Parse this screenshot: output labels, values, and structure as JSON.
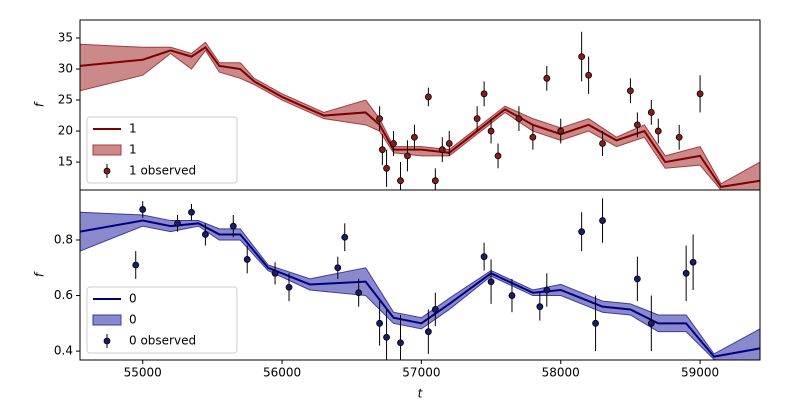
{
  "chart_data": [
    {
      "type": "line",
      "ylabel": "f",
      "legend": "lower left",
      "xlim": [
        54550,
        59430
      ],
      "ylim": [
        10.5,
        37.9
      ],
      "yticks": [
        15,
        20,
        25,
        30,
        35
      ],
      "x": [
        54550,
        55000,
        55200,
        55350,
        55450,
        55550,
        55700,
        55800,
        56000,
        56300,
        56600,
        56700,
        56800,
        57000,
        57200,
        57400,
        57600,
        57800,
        58000,
        58200,
        58400,
        58600,
        58750,
        59000,
        59150,
        59430
      ],
      "series": [
        {
          "name": "1",
          "color": "#800000",
          "values": [
            30.5,
            31.5,
            33,
            32,
            33.5,
            30.5,
            30,
            28,
            25.5,
            22.5,
            23,
            21,
            17,
            17,
            16.5,
            20,
            23.5,
            21,
            19.5,
            21,
            18.5,
            20,
            15,
            16,
            11,
            12
          ]
        }
      ],
      "band": {
        "name": "1",
        "color": "#a83a3a",
        "lower": [
          26.5,
          29,
          32.5,
          30,
          33,
          29.5,
          28.5,
          27.5,
          25,
          22,
          21,
          20,
          16.5,
          16,
          16,
          19.5,
          23,
          20,
          18.5,
          20,
          17.5,
          19,
          14,
          14.5,
          10.5,
          9
        ],
        "upper": [
          34,
          33.5,
          33.5,
          32.5,
          34.3,
          31,
          31,
          28.5,
          26,
          23,
          25,
          22,
          17.5,
          17.5,
          17,
          20.5,
          24,
          22,
          20.5,
          22,
          19,
          21,
          16,
          17.5,
          11.5,
          15
        ]
      },
      "observed": {
        "name": "1 observed",
        "color": "#8b1a1a",
        "x": [
          56700,
          56720,
          56750,
          56800,
          56850,
          56900,
          56950,
          57050,
          57100,
          57150,
          57200,
          57400,
          57450,
          57500,
          57550,
          57700,
          57800,
          57900,
          58000,
          58150,
          58200,
          58300,
          58500,
          58550,
          58650,
          58700,
          58850,
          59000
        ],
        "values": [
          22,
          17,
          14,
          18,
          12,
          16,
          19,
          25.5,
          12,
          17,
          18,
          22,
          26,
          20,
          16,
          22,
          19,
          28.5,
          20,
          32,
          29,
          18,
          26.5,
          21,
          23,
          20,
          19,
          26
        ],
        "errors": [
          2,
          2.5,
          3,
          2,
          3,
          2.5,
          2,
          1.5,
          2,
          2,
          2,
          2,
          2,
          2,
          2,
          2,
          2,
          2,
          2,
          4,
          3,
          2,
          2,
          2,
          2,
          2,
          2,
          3
        ]
      }
    },
    {
      "type": "line",
      "ylabel": "f",
      "xlabel": "t",
      "legend": "lower left",
      "xlim": [
        54550,
        59430
      ],
      "ylim": [
        0.368,
        0.98
      ],
      "yticks": [
        0.4,
        0.6,
        0.8
      ],
      "xticks": [
        55000,
        56000,
        57000,
        58000,
        59000
      ],
      "x": [
        54550,
        55000,
        55200,
        55400,
        55550,
        55700,
        55900,
        56200,
        56600,
        56800,
        57000,
        57200,
        57500,
        57800,
        58000,
        58200,
        58300,
        58500,
        58700,
        58900,
        59100,
        59430
      ],
      "series": [
        {
          "name": "0",
          "color": "#00007f",
          "values": [
            0.83,
            0.87,
            0.85,
            0.86,
            0.82,
            0.82,
            0.7,
            0.64,
            0.65,
            0.52,
            0.5,
            0.57,
            0.68,
            0.61,
            0.62,
            0.58,
            0.56,
            0.55,
            0.5,
            0.5,
            0.38,
            0.41
          ]
        }
      ],
      "band": {
        "name": "0",
        "color": "#3a3aa8",
        "lower": [
          0.76,
          0.85,
          0.83,
          0.85,
          0.8,
          0.8,
          0.69,
          0.62,
          0.6,
          0.5,
          0.48,
          0.55,
          0.67,
          0.6,
          0.6,
          0.56,
          0.54,
          0.53,
          0.47,
          0.47,
          0.37,
          0.34
        ],
        "upper": [
          0.9,
          0.89,
          0.87,
          0.87,
          0.84,
          0.84,
          0.71,
          0.66,
          0.7,
          0.54,
          0.52,
          0.59,
          0.69,
          0.62,
          0.64,
          0.6,
          0.58,
          0.57,
          0.53,
          0.53,
          0.39,
          0.48
        ]
      },
      "observed": {
        "name": "0 observed",
        "color": "#1a1a6e",
        "x": [
          54950,
          55000,
          55250,
          55350,
          55450,
          55650,
          55750,
          55950,
          56050,
          56400,
          56450,
          56550,
          56700,
          56750,
          56850,
          57050,
          57100,
          57450,
          57500,
          57650,
          57850,
          57900,
          58150,
          58250,
          58300,
          58550,
          58650,
          58900,
          58950
        ],
        "values": [
          0.71,
          0.91,
          0.86,
          0.9,
          0.82,
          0.85,
          0.73,
          0.68,
          0.63,
          0.7,
          0.81,
          0.61,
          0.5,
          0.45,
          0.43,
          0.47,
          0.55,
          0.74,
          0.65,
          0.6,
          0.56,
          0.62,
          0.83,
          0.5,
          0.87,
          0.66,
          0.5,
          0.68,
          0.72
        ],
        "errors": [
          0.05,
          0.03,
          0.03,
          0.03,
          0.04,
          0.04,
          0.05,
          0.04,
          0.05,
          0.04,
          0.05,
          0.05,
          0.08,
          0.1,
          0.1,
          0.08,
          0.06,
          0.05,
          0.08,
          0.06,
          0.05,
          0.06,
          0.07,
          0.1,
          0.08,
          0.08,
          0.1,
          0.1,
          0.1
        ]
      }
    }
  ]
}
